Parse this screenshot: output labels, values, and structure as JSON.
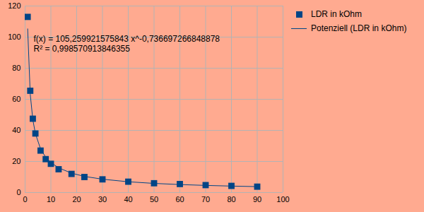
{
  "chart_data": {
    "type": "scatter",
    "series": [
      {
        "name": "LDR in kOhm",
        "type": "scatter",
        "marker": "square",
        "color": "#004586",
        "x": [
          1,
          2,
          3,
          4,
          6,
          8,
          10,
          13,
          18,
          23,
          30,
          40,
          50,
          60,
          70,
          80,
          90
        ],
        "values": [
          113,
          65.5,
          47.5,
          38,
          27,
          21.5,
          18.5,
          15,
          12,
          10,
          8.5,
          7,
          6,
          5.5,
          4.8,
          4.3,
          3.8
        ]
      },
      {
        "name": "Potenziell (LDR in kOhm)",
        "type": "line",
        "line_style": "solid",
        "color": "#004586",
        "x": [
          1,
          2,
          3,
          4,
          6,
          8,
          10,
          13,
          18,
          23,
          30,
          40,
          50,
          60,
          70,
          80,
          90
        ],
        "values": [
          105.3,
          63.2,
          46.9,
          37.9,
          28.1,
          22.7,
          19.3,
          15.9,
          12.5,
          10.4,
          8.6,
          6.95,
          5.9,
          5.16,
          4.6,
          4.17,
          3.82
        ]
      }
    ],
    "annotations": [
      "f(x) = 105,259921575843 x^-0,736697266848878",
      "R² = 0,998570913846355"
    ],
    "xlim": [
      0,
      100
    ],
    "xticks": [
      0,
      10,
      20,
      30,
      40,
      50,
      60,
      70,
      80,
      90,
      100
    ],
    "ylim": [
      0,
      120
    ],
    "yticks": [
      0,
      20,
      40,
      60,
      80,
      100,
      120
    ],
    "grid": true,
    "legend": "right"
  }
}
